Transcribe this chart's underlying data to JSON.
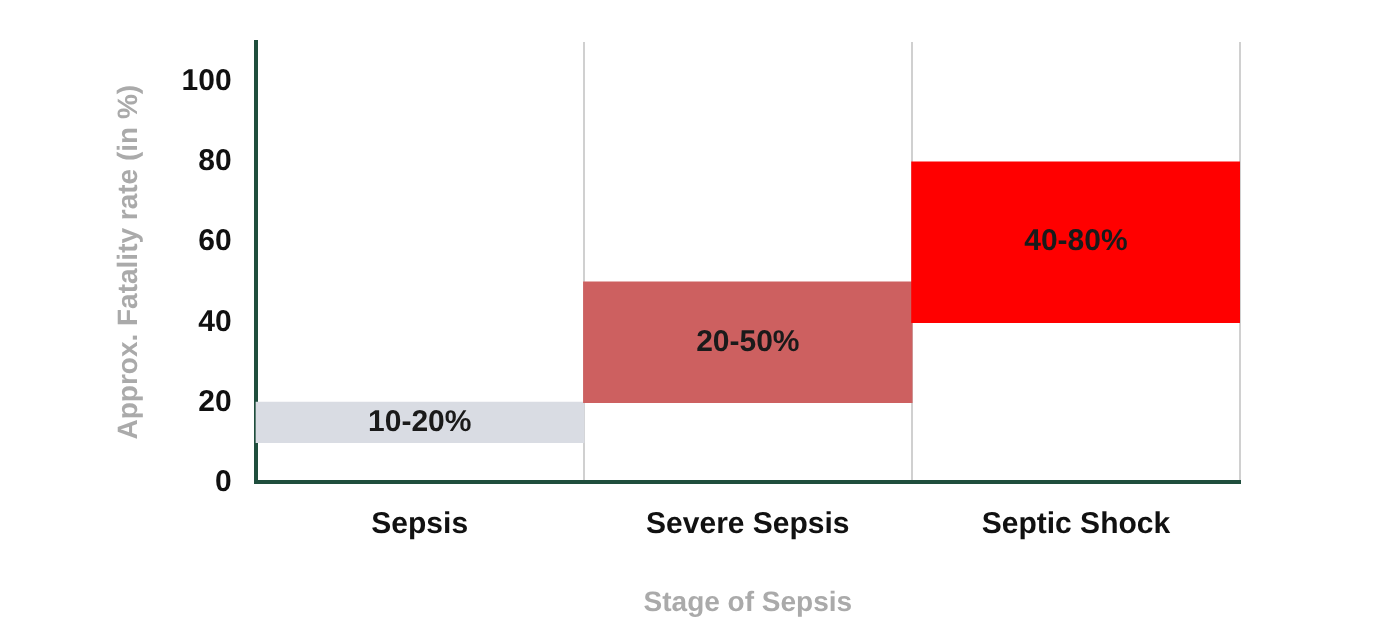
{
  "chart_data": {
    "type": "bar",
    "xlabel": "Stage of Sepsis",
    "ylabel": "Approx. Fatality rate (in %)",
    "categories": [
      "Sepsis",
      "Severe Sepsis",
      "Septic Shock"
    ],
    "base": [
      10,
      20,
      40
    ],
    "values": [
      10,
      30,
      40
    ],
    "colors": [
      "#d9dce3",
      "#cd6060",
      "#ff0000"
    ],
    "annotations": [
      "10-20%",
      "20-50%",
      "40-80%"
    ],
    "ylim": [
      0,
      110
    ],
    "yticks": [
      0,
      20,
      40,
      60,
      80,
      100
    ],
    "grid": "x",
    "legend": false
  }
}
